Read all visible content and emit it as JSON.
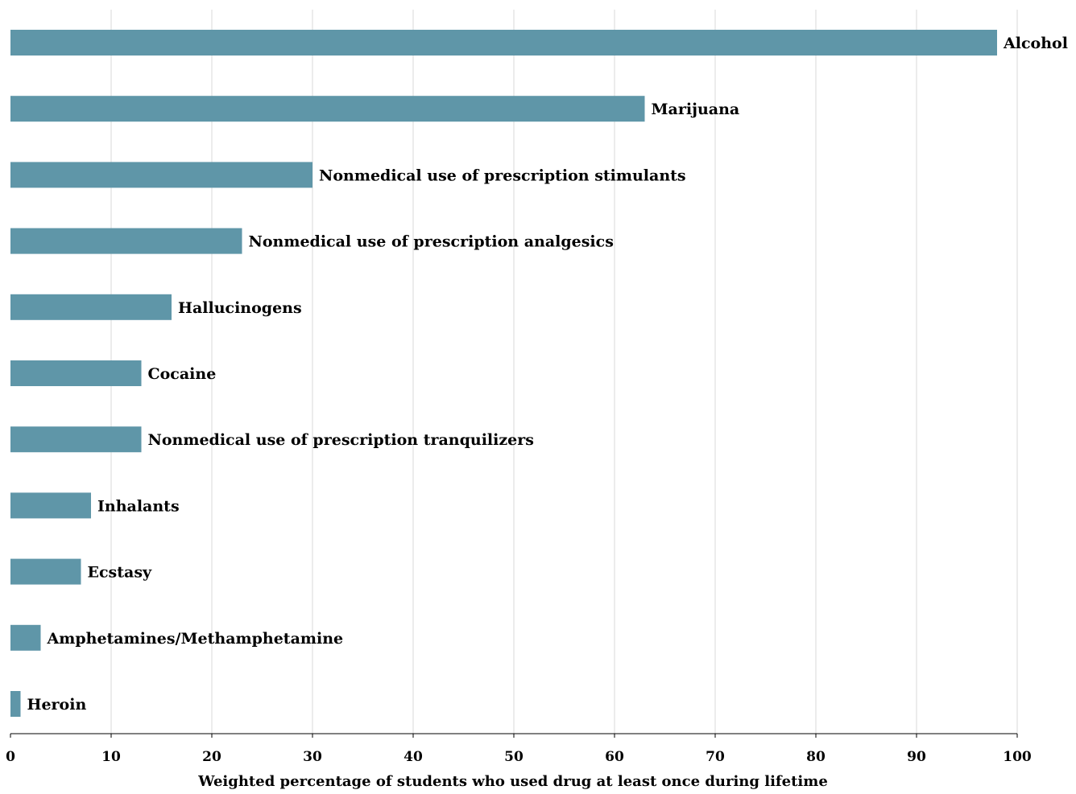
{
  "chart_data": {
    "type": "bar",
    "orientation": "horizontal",
    "categories": [
      "Alcohol",
      "Marijuana",
      "Nonmedical use of prescription stimulants",
      "Nonmedical use of prescription analgesics",
      "Hallucinogens",
      "Cocaine",
      "Nonmedical use of prescription tranquilizers",
      "Inhalants",
      "Ecstasy",
      "Amphetamines/Methamphetamine",
      "Heroin"
    ],
    "values": [
      98,
      63,
      30,
      23,
      16,
      13,
      13,
      8,
      7,
      3,
      1
    ],
    "title": "",
    "xlabel": "Weighted percentage of students who used drug at least once during lifetime",
    "ylabel": "",
    "xlim": [
      0,
      100
    ],
    "xticks": [
      0,
      10,
      20,
      30,
      40,
      50,
      60,
      70,
      80,
      90,
      100
    ],
    "grid": "vertical",
    "legend": "none",
    "bar_color": "#5f96a8"
  }
}
